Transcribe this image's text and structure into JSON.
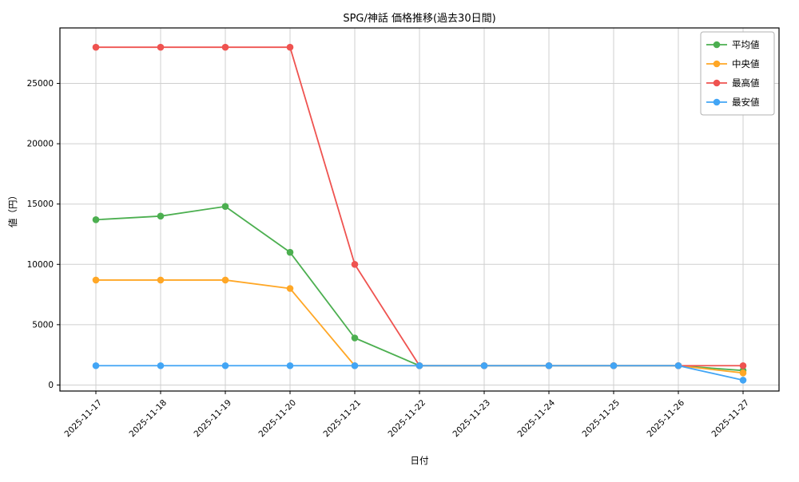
{
  "title": "SPG/神話 価格推移(過去30日間)",
  "xlabel": "日付",
  "ylabel": "値（円）",
  "legend": {
    "items": [
      "平均値",
      "中央値",
      "最高値",
      "最安値"
    ],
    "position": "upper right"
  },
  "colors": {
    "mean": "#4caf50",
    "median": "#ffa726",
    "max": "#ef5350",
    "min": "#42a5f5",
    "grid": "#cfcfcf",
    "axis": "#000000",
    "legend_border": "#b0b0b0"
  },
  "chart_data": {
    "type": "line",
    "x": [
      "2025-11-17",
      "2025-11-18",
      "2025-11-19",
      "2025-11-20",
      "2025-11-21",
      "2025-11-22",
      "2025-11-23",
      "2025-11-24",
      "2025-11-25",
      "2025-11-26",
      "2025-11-27"
    ],
    "series": [
      {
        "name": "平均値",
        "color": "#4caf50",
        "values": [
          13700,
          14000,
          14800,
          11000,
          3900,
          1600,
          1600,
          1600,
          1600,
          1600,
          1200
        ]
      },
      {
        "name": "中央値",
        "color": "#ffa726",
        "values": [
          8700,
          8700,
          8700,
          8000,
          1600,
          1600,
          1600,
          1600,
          1600,
          1600,
          1000
        ]
      },
      {
        "name": "最高値",
        "color": "#ef5350",
        "values": [
          28000,
          28000,
          28000,
          28000,
          10000,
          1600,
          1600,
          1600,
          1600,
          1600,
          1600
        ]
      },
      {
        "name": "最安値",
        "color": "#42a5f5",
        "values": [
          1600,
          1600,
          1600,
          1600,
          1600,
          1600,
          1600,
          1600,
          1600,
          1600,
          400
        ]
      }
    ],
    "title": "SPG/神話 価格推移(過去30日間)",
    "xlabel": "日付",
    "ylabel": "値（円）",
    "yticks": [
      0,
      5000,
      10000,
      15000,
      20000,
      25000
    ],
    "ylim": [
      -500,
      29600
    ],
    "grid": true,
    "legend_position": "upper right"
  }
}
